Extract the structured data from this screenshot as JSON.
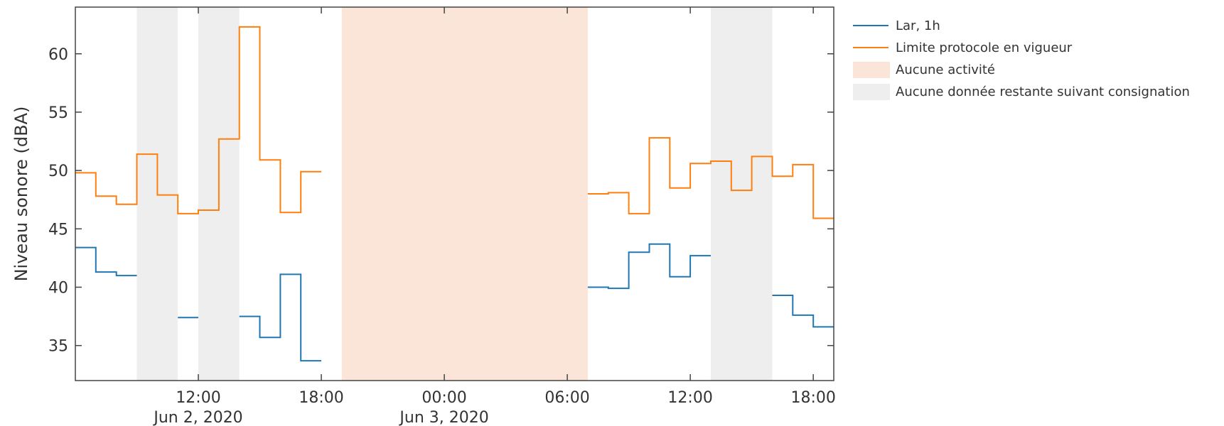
{
  "chart_data": {
    "type": "line",
    "step": true,
    "title": "",
    "xlabel": "",
    "ylabel": "Niveau sonore (dBA)",
    "xlim": [
      "2020-06-02 06:00",
      "2020-06-03 19:00"
    ],
    "ylim": [
      32,
      64
    ],
    "yticks": [
      35,
      40,
      45,
      50,
      55,
      60
    ],
    "xticks": [
      {
        "t": "2020-06-02 12:00",
        "label": "12:00",
        "sublabel": "Jun 2, 2020"
      },
      {
        "t": "2020-06-02 18:00",
        "label": "18:00",
        "sublabel": ""
      },
      {
        "t": "2020-06-03 00:00",
        "label": "00:00",
        "sublabel": "Jun 3, 2020"
      },
      {
        "t": "2020-06-03 06:00",
        "label": "06:00",
        "sublabel": ""
      },
      {
        "t": "2020-06-03 12:00",
        "label": "12:00",
        "sublabel": ""
      },
      {
        "t": "2020-06-03 18:00",
        "label": "18:00",
        "sublabel": ""
      }
    ],
    "grid": false,
    "legend_position": "right",
    "bands": [
      {
        "name": "Aucune activité",
        "color": "#fbe5d8",
        "intervals": [
          [
            "2020-06-02 19:00",
            "2020-06-03 07:00"
          ]
        ]
      },
      {
        "name": "Aucune donnée restante suivant consignation",
        "color": "#eeeeee",
        "intervals": [
          [
            "2020-06-02 09:00",
            "2020-06-02 11:00"
          ],
          [
            "2020-06-02 12:00",
            "2020-06-02 14:00"
          ],
          [
            "2020-06-03 13:00",
            "2020-06-03 16:00"
          ]
        ]
      }
    ],
    "x": [
      "2020-06-02 06:00",
      "2020-06-02 07:00",
      "2020-06-02 08:00",
      "2020-06-02 09:00",
      "2020-06-02 10:00",
      "2020-06-02 11:00",
      "2020-06-02 12:00",
      "2020-06-02 13:00",
      "2020-06-02 14:00",
      "2020-06-02 15:00",
      "2020-06-02 16:00",
      "2020-06-02 17:00",
      "2020-06-02 18:00",
      "2020-06-02 19:00",
      "2020-06-03 07:00",
      "2020-06-03 08:00",
      "2020-06-03 09:00",
      "2020-06-03 10:00",
      "2020-06-03 11:00",
      "2020-06-03 12:00",
      "2020-06-03 13:00",
      "2020-06-03 14:00",
      "2020-06-03 15:00",
      "2020-06-03 16:00",
      "2020-06-03 17:00",
      "2020-06-03 18:00",
      "2020-06-03 19:00"
    ],
    "series": [
      {
        "name": "Lar, 1h",
        "color": "#1f77b4",
        "values": [
          43.4,
          41.3,
          41.0,
          null,
          null,
          37.4,
          null,
          null,
          37.5,
          35.7,
          41.1,
          33.7,
          null,
          null,
          40.0,
          39.9,
          43.0,
          43.7,
          40.9,
          42.7,
          null,
          null,
          null,
          39.3,
          37.6,
          36.6,
          null
        ]
      },
      {
        "name": "Limite protocole en vigueur",
        "color": "#ff7f0e",
        "values": [
          49.8,
          47.8,
          47.1,
          51.4,
          47.9,
          46.3,
          46.6,
          52.7,
          62.3,
          50.9,
          46.4,
          49.9,
          null,
          null,
          48.0,
          48.1,
          46.3,
          52.8,
          48.5,
          50.6,
          50.8,
          48.3,
          51.2,
          49.5,
          50.5,
          45.9,
          null
        ]
      }
    ]
  }
}
